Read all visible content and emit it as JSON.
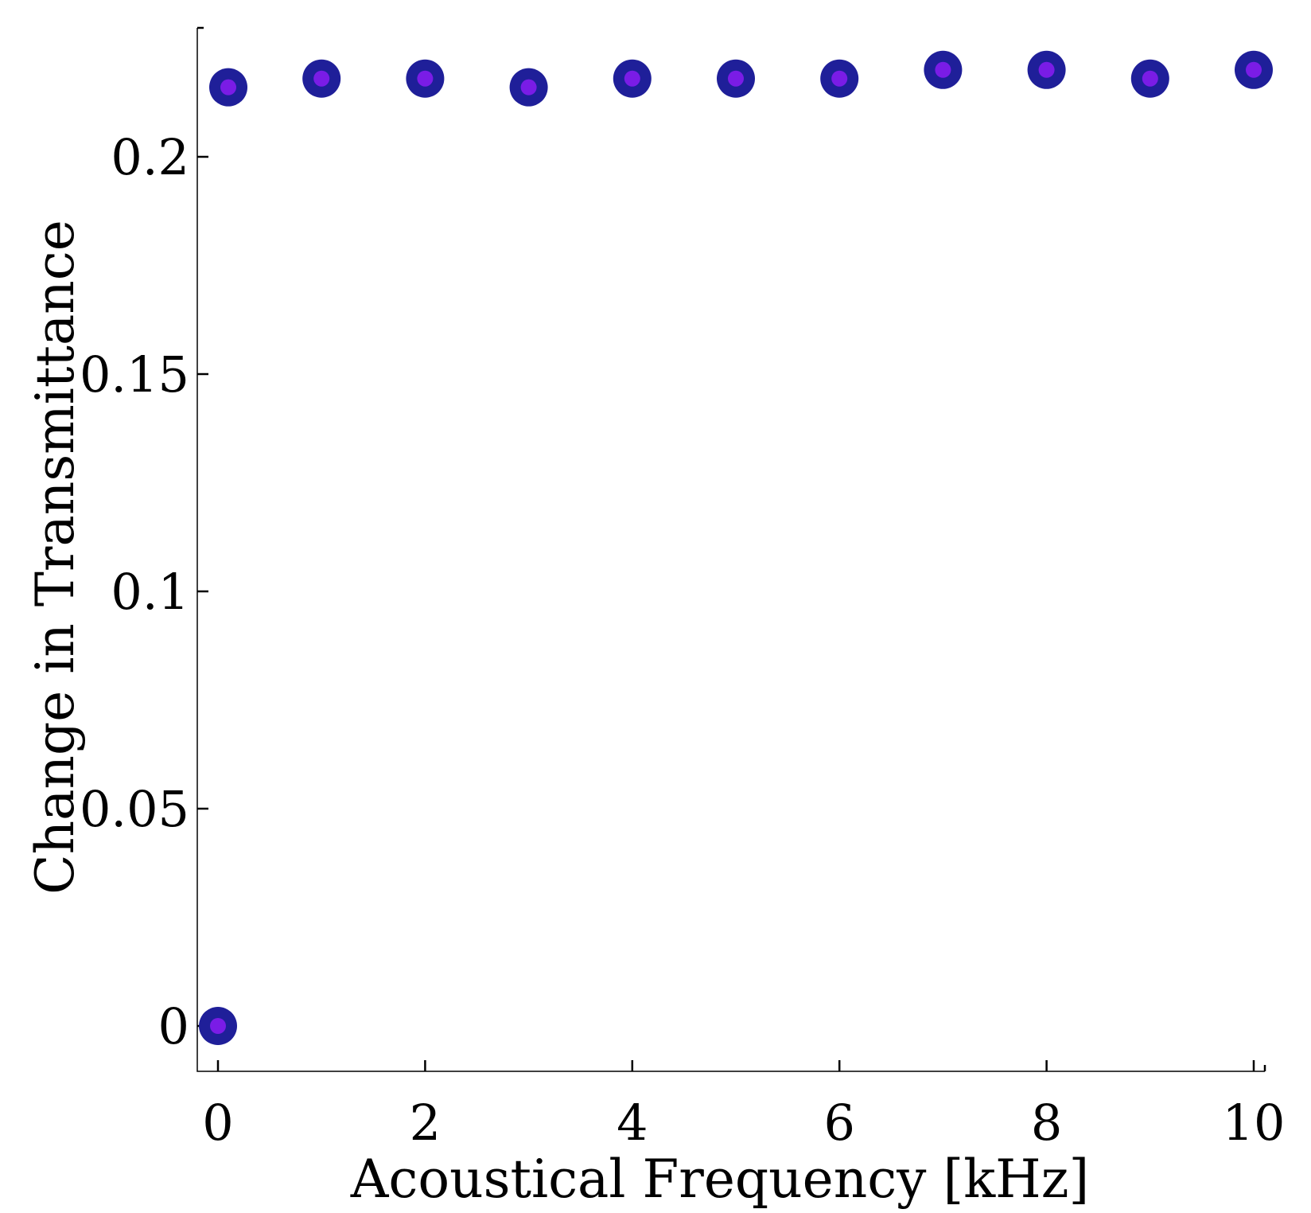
{
  "chart_data": {
    "type": "scatter",
    "title": "",
    "xlabel": "Acoustical Frequency [kHz]",
    "ylabel": "Change in Transmittance",
    "xlim": [
      -0.2,
      10.1
    ],
    "ylim": [
      -0.01,
      0.23
    ],
    "xticks": [
      0,
      2,
      4,
      6,
      8,
      10
    ],
    "xtick_labels": [
      "0",
      "2",
      "4",
      "6",
      "8",
      "10"
    ],
    "yticks": [
      0,
      0.05,
      0.1,
      0.15,
      0.2
    ],
    "ytick_labels": [
      "0",
      "0.05",
      "0.1",
      "0.15",
      "0.2"
    ],
    "grid": false,
    "series": [
      {
        "x": [
          0,
          0.1,
          1,
          2,
          3,
          4,
          5,
          6,
          7,
          8,
          9,
          10
        ],
        "y": [
          0,
          0.216,
          0.218,
          0.218,
          0.216,
          0.218,
          0.218,
          0.218,
          0.22,
          0.22,
          0.218,
          0.22
        ],
        "marker_edge_color": "#1f1f99",
        "marker_face_color": "#7a1ce6"
      }
    ]
  }
}
